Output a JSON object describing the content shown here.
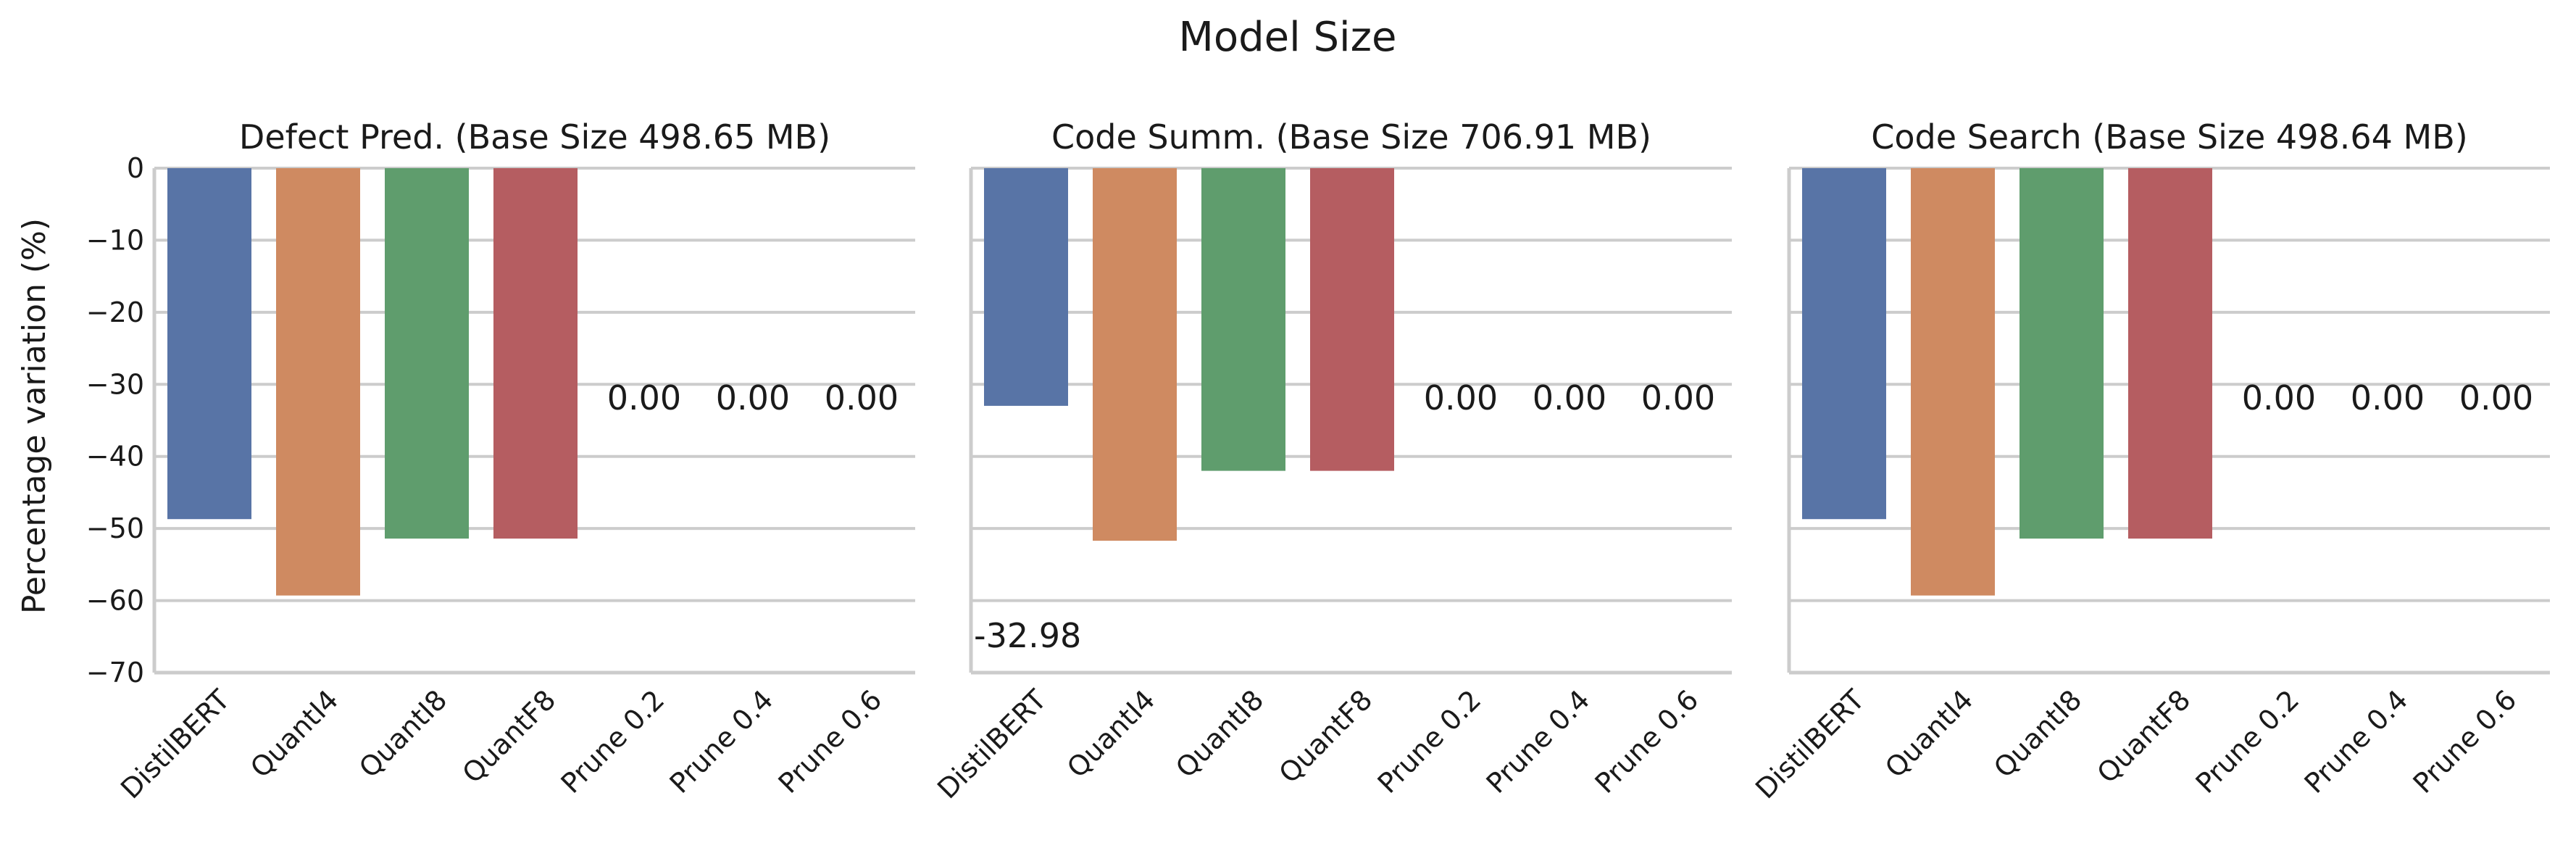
{
  "title": "Model Size",
  "ylabel": "Percentage variation (%)",
  "colors": {
    "DistilBERT": "#5874a6",
    "QuantI4": "#cf8a61",
    "QuantI8": "#5f9d6d",
    "QuantF8": "#b55d61"
  },
  "chart_data": [
    {
      "type": "bar",
      "title": "Defect Pred. (Base Size 498.65 MB)",
      "categories": [
        "DistilBERT",
        "QuantI4",
        "QuantI8",
        "QuantF8",
        "Prune 0.2",
        "Prune 0.4",
        "Prune 0.6"
      ],
      "values": [
        -48.7,
        -59.3,
        -51.4,
        -51.4,
        0.0,
        0.0,
        0.0
      ],
      "data_labels": [
        "",
        "",
        "",
        "",
        "0.00",
        "0.00",
        "0.00"
      ],
      "ylim": [
        -70,
        0
      ],
      "yticks": [
        0,
        -10,
        -20,
        -30,
        -40,
        -50,
        -60,
        -70
      ],
      "ylabel": "Percentage variation (%)",
      "grid": true
    },
    {
      "type": "bar",
      "title": "Code Summ. (Base Size 706.91 MB)",
      "categories": [
        "DistilBERT",
        "QuantI4",
        "QuantI8",
        "QuantF8",
        "Prune 0.2",
        "Prune 0.4",
        "Prune 0.6"
      ],
      "values": [
        -32.98,
        -51.7,
        -42.0,
        -42.0,
        0.0,
        0.0,
        0.0
      ],
      "data_labels": [
        "-32.98",
        "",
        "",
        "",
        "0.00",
        "0.00",
        "0.00"
      ],
      "ylim": [
        -70,
        0
      ],
      "grid": true
    },
    {
      "type": "bar",
      "title": "Code Search (Base Size 498.64 MB)",
      "categories": [
        "DistilBERT",
        "QuantI4",
        "QuantI8",
        "QuantF8",
        "Prune 0.2",
        "Prune 0.4",
        "Prune 0.6"
      ],
      "values": [
        -48.7,
        -59.3,
        -51.4,
        -51.4,
        0.0,
        0.0,
        0.0
      ],
      "data_labels": [
        "",
        "",
        "",
        "",
        "0.00",
        "0.00",
        "0.00"
      ],
      "ylim": [
        -70,
        0
      ],
      "grid": true
    }
  ]
}
